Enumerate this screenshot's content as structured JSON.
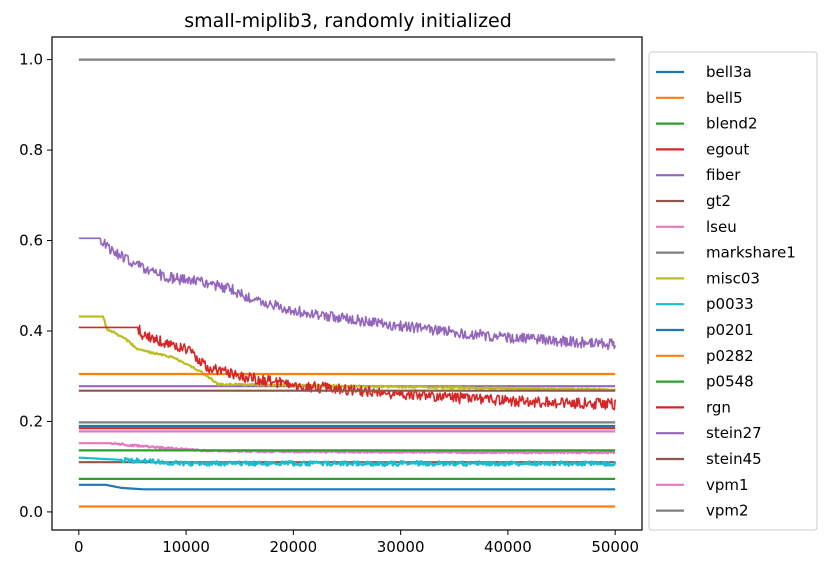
{
  "chart_data": {
    "type": "line",
    "title": "small-miplib3, randomly initialized",
    "xlabel": "",
    "ylabel": "",
    "xlim": [
      -2500,
      52500
    ],
    "ylim": [
      -0.04,
      1.05
    ],
    "xticks": [
      0,
      10000,
      20000,
      30000,
      40000,
      50000
    ],
    "xtick_labels": [
      "0",
      "10000",
      "20000",
      "30000",
      "40000",
      "50000"
    ],
    "yticks": [
      0.0,
      0.2,
      0.4,
      0.6,
      0.8,
      1.0
    ],
    "ytick_labels": [
      "0.0",
      "0.2",
      "0.4",
      "0.6",
      "0.8",
      "1.0"
    ],
    "legend_position": "right",
    "series": [
      {
        "name": "bell3a",
        "color": "#1f77b4",
        "x": [
          0,
          2500,
          4000,
          6000,
          10000,
          20000,
          30000,
          40000,
          50000
        ],
        "y": [
          0.06,
          0.06,
          0.053,
          0.05,
          0.05,
          0.05,
          0.05,
          0.05,
          0.05
        ],
        "noise": 0
      },
      {
        "name": "bell5",
        "color": "#ff7f0e",
        "x": [
          0,
          50000
        ],
        "y": [
          0.012,
          0.012
        ],
        "noise": 0
      },
      {
        "name": "blend2",
        "color": "#2ca02c",
        "x": [
          0,
          50000
        ],
        "y": [
          0.073,
          0.073
        ],
        "noise": 0
      },
      {
        "name": "egout",
        "color": "#d62728",
        "x": [
          0,
          50000
        ],
        "y": [
          0.185,
          0.185
        ],
        "noise": 0
      },
      {
        "name": "fiber",
        "color": "#9467bd",
        "x": [
          0,
          50000
        ],
        "y": [
          0.278,
          0.278
        ],
        "noise": 0
      },
      {
        "name": "gt2",
        "color": "#8c564b",
        "x": [
          0,
          50000
        ],
        "y": [
          0.11,
          0.11
        ],
        "noise": 0
      },
      {
        "name": "lseu",
        "color": "#e377c2",
        "x": [
          0,
          3000,
          6000,
          9000,
          12000,
          20000,
          50000
        ],
        "y": [
          0.152,
          0.152,
          0.145,
          0.14,
          0.135,
          0.133,
          0.131
        ],
        "noise": 0.002
      },
      {
        "name": "markshare1",
        "color": "#7f7f7f",
        "x": [
          0,
          50000
        ],
        "y": [
          1.0,
          1.0
        ],
        "noise": 0
      },
      {
        "name": "misc03",
        "color": "#bcbd22",
        "x": [
          0,
          2300,
          2600,
          4200,
          5500,
          9000,
          11000,
          12000,
          13000,
          50000
        ],
        "y": [
          0.432,
          0.432,
          0.405,
          0.385,
          0.36,
          0.34,
          0.315,
          0.3,
          0.282,
          0.27
        ],
        "noise": 0.002
      },
      {
        "name": "p0033",
        "color": "#17becf",
        "x": [
          0,
          4000,
          8000,
          10000,
          20000,
          50000
        ],
        "y": [
          0.12,
          0.115,
          0.11,
          0.107,
          0.107,
          0.107
        ],
        "noise": 0.005
      },
      {
        "name": "p0201",
        "color": "#1f77b4",
        "x": [
          0,
          50000
        ],
        "y": [
          0.19,
          0.19
        ],
        "noise": 0
      },
      {
        "name": "p0282",
        "color": "#ff7f0e",
        "x": [
          0,
          50000
        ],
        "y": [
          0.305,
          0.305
        ],
        "noise": 0
      },
      {
        "name": "p0548",
        "color": "#2ca02c",
        "x": [
          0,
          50000
        ],
        "y": [
          0.136,
          0.136
        ],
        "noise": 0
      },
      {
        "name": "rgn",
        "color": "#d62728",
        "x": [
          0,
          5500,
          6000,
          10000,
          12000,
          15000,
          20000,
          30000,
          40000,
          50000
        ],
        "y": [
          0.408,
          0.408,
          0.39,
          0.36,
          0.32,
          0.3,
          0.28,
          0.26,
          0.245,
          0.238
        ],
        "noise": 0.012
      },
      {
        "name": "stein27",
        "color": "#9467bd",
        "x": [
          0,
          2000,
          3000,
          5000,
          8000,
          12000,
          14000,
          16000,
          20000,
          30000,
          40000,
          50000
        ],
        "y": [
          0.605,
          0.605,
          0.58,
          0.55,
          0.52,
          0.505,
          0.495,
          0.47,
          0.445,
          0.41,
          0.385,
          0.37
        ],
        "noise": 0.012
      },
      {
        "name": "stein45",
        "color": "#8c564b",
        "x": [
          0,
          50000
        ],
        "y": [
          0.268,
          0.268
        ],
        "noise": 0
      },
      {
        "name": "vpm1",
        "color": "#e377c2",
        "x": [
          0,
          50000
        ],
        "y": [
          0.178,
          0.178
        ],
        "noise": 0
      },
      {
        "name": "vpm2",
        "color": "#7f7f7f",
        "x": [
          0,
          50000
        ],
        "y": [
          0.198,
          0.198
        ],
        "noise": 0
      }
    ]
  }
}
